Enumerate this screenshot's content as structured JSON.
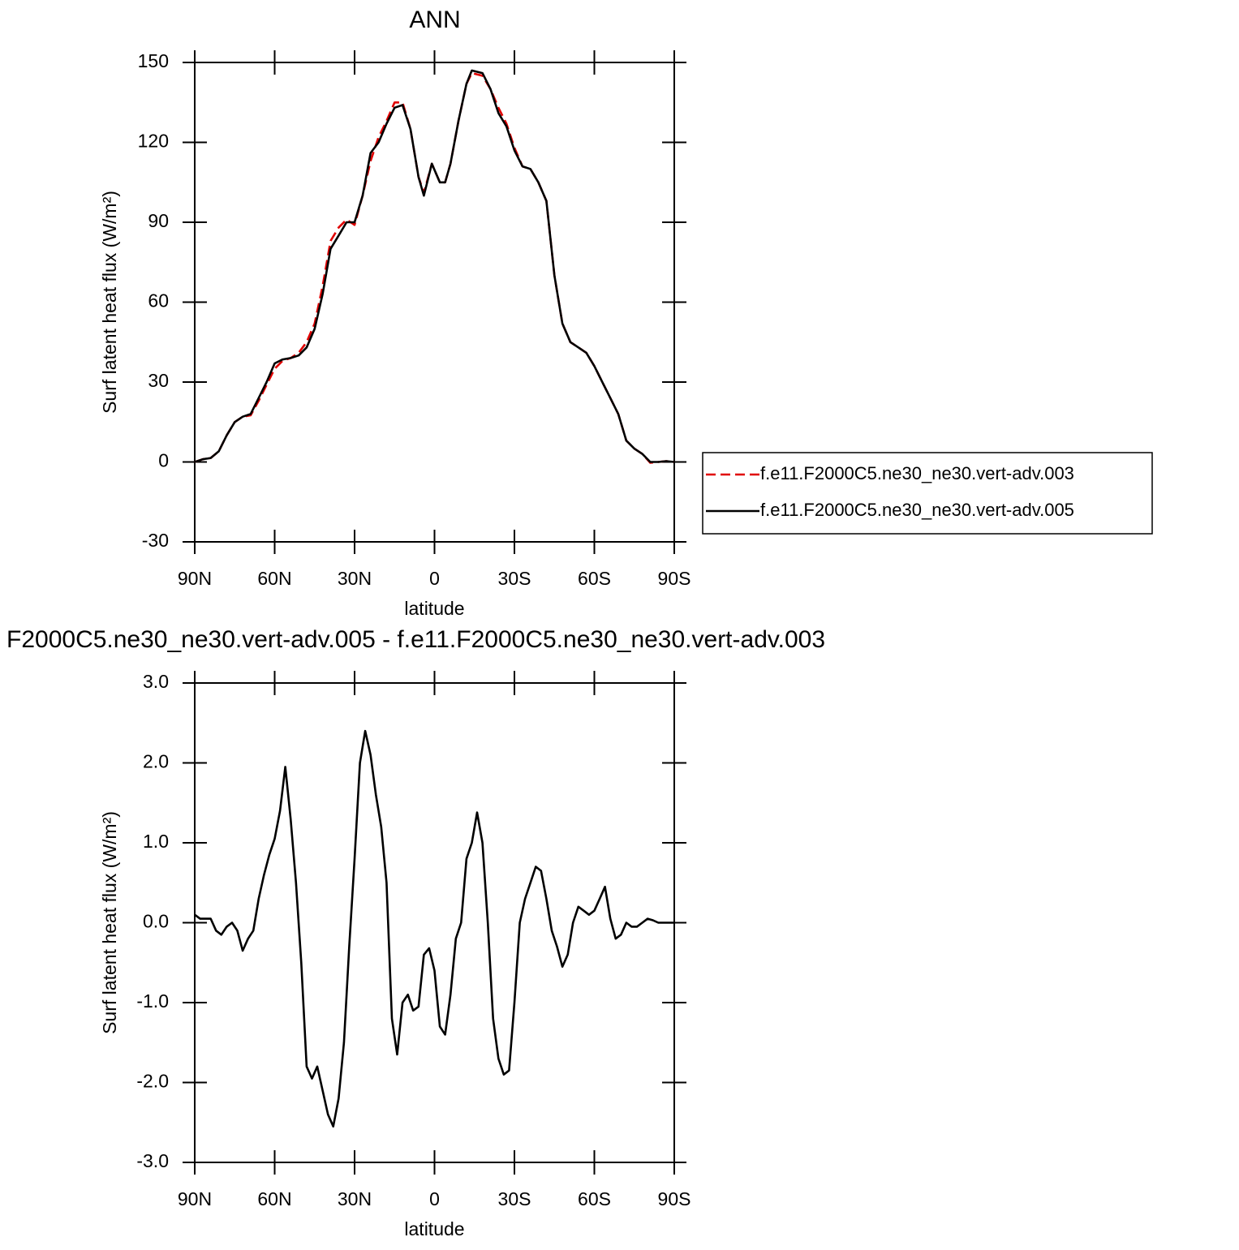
{
  "chart_data": [
    {
      "type": "line",
      "title": "ANN",
      "xlabel": "latitude",
      "ylabel": "Surf latent heat flux (W/m²)",
      "xlim": [
        90,
        -90
      ],
      "xticks": [
        {
          "value": 90,
          "label": "90N"
        },
        {
          "value": 60,
          "label": "60N"
        },
        {
          "value": 30,
          "label": "30N"
        },
        0,
        {
          "value": -30,
          "label": "30S"
        },
        {
          "value": -60,
          "label": "60S"
        },
        {
          "value": -90,
          "label": "90S"
        }
      ],
      "ylim": [
        -30,
        150
      ],
      "yticks": [
        -30,
        0,
        30,
        60,
        90,
        120,
        150
      ],
      "legend": "outside right",
      "x": [
        90,
        87,
        84,
        81,
        78,
        75,
        72,
        69,
        66,
        63,
        60,
        57,
        54,
        51,
        48,
        45,
        42,
        39,
        36,
        33,
        30,
        27,
        24,
        21,
        18,
        15,
        12,
        9,
        6,
        4,
        1,
        -2,
        -4,
        -6,
        -9,
        -12,
        -14,
        -18,
        -21,
        -24,
        -27,
        -30,
        -33,
        -36,
        -39,
        -42,
        -45,
        -48,
        -51,
        -54,
        -57,
        -60,
        -63,
        -66,
        -69,
        -72,
        -75,
        -78,
        -81,
        -84,
        -87,
        -90
      ],
      "series": [
        {
          "name": "f.e11.F2000C5.ne30_ne30.vert-adv.003",
          "color": "#e00000",
          "line_style": "dashed",
          "values": [
            0,
            1,
            1.5,
            4,
            10,
            15,
            17,
            17.5,
            23,
            29,
            35,
            38,
            39,
            41,
            45,
            52,
            66,
            83,
            88,
            91,
            89,
            100,
            113,
            122,
            128,
            135,
            135,
            125,
            107,
            101,
            112,
            105,
            105,
            112,
            128,
            142,
            146,
            145,
            140,
            133,
            127,
            118,
            111,
            110,
            105,
            98,
            70,
            52,
            45,
            43,
            41,
            36,
            30,
            24,
            18,
            8,
            5,
            3,
            -0.3,
            0,
            0.3,
            0
          ]
        },
        {
          "name": "f.e11.F2000C5.ne30_ne30.vert-adv.005",
          "color": "#000000",
          "line_style": "solid",
          "values": [
            0,
            1,
            1.5,
            4,
            10,
            15,
            17,
            18,
            24,
            30,
            37,
            38.5,
            39,
            40,
            43,
            50,
            63,
            80,
            85,
            90,
            90,
            100,
            116,
            120,
            127,
            133,
            134,
            125,
            107,
            100,
            112,
            105,
            105,
            112,
            128,
            142,
            147,
            146,
            140,
            131,
            126,
            117,
            111,
            110,
            105,
            98,
            70,
            52,
            45,
            43,
            41,
            36,
            30,
            24,
            18,
            8,
            5,
            3,
            0,
            0,
            0.3,
            0
          ]
        }
      ]
    },
    {
      "type": "line",
      "title": "F2000C5.ne30_ne30.vert-adv.005 - f.e11.F2000C5.ne30_ne30.vert-adv.003",
      "xlabel": "latitude",
      "ylabel": "Surf latent heat flux (W/m²)",
      "xlim": [
        90,
        -90
      ],
      "xticks": [
        {
          "value": 90,
          "label": "90N"
        },
        {
          "value": 60,
          "label": "60N"
        },
        {
          "value": 30,
          "label": "30N"
        },
        0,
        {
          "value": -30,
          "label": "30S"
        },
        {
          "value": -60,
          "label": "60S"
        },
        {
          "value": -90,
          "label": "90S"
        }
      ],
      "ylim": [
        -3,
        3
      ],
      "yticks": [
        {
          "value": -3,
          "label": "-3.0"
        },
        {
          "value": -2,
          "label": "-2.0"
        },
        {
          "value": -1,
          "label": "-1.0"
        },
        {
          "value": 0,
          "label": "0.0"
        },
        {
          "value": 1,
          "label": "1.0"
        },
        {
          "value": 2,
          "label": "2.0"
        },
        {
          "value": 3,
          "label": "3.0"
        }
      ],
      "x": [
        90,
        88,
        86,
        84,
        82,
        80,
        78,
        76,
        74,
        72,
        70,
        68,
        66,
        64,
        62,
        60,
        58,
        56,
        54,
        52,
        50,
        48,
        46,
        44,
        42,
        40,
        38,
        36,
        34,
        32,
        30,
        28,
        26,
        24,
        22,
        20,
        18,
        16,
        14,
        12,
        10,
        8,
        6,
        4,
        2,
        0,
        -2,
        -4,
        -6,
        -8,
        -10,
        -12,
        -14,
        -16,
        -18,
        -20,
        -22,
        -24,
        -26,
        -28,
        -30,
        -32,
        -34,
        -36,
        -38,
        -40,
        -42,
        -44,
        -46,
        -48,
        -50,
        -52,
        -54,
        -56,
        -58,
        -60,
        -62,
        -64,
        -66,
        -68,
        -70,
        -72,
        -74,
        -76,
        -78,
        -80,
        -82,
        -84,
        -86,
        -88,
        -90
      ],
      "series": [
        {
          "color": "#000000",
          "line_style": "solid",
          "values": [
            0.1,
            0.05,
            0.05,
            0.05,
            -0.1,
            -0.15,
            -0.05,
            0,
            -0.1,
            -0.35,
            -0.2,
            -0.1,
            0.3,
            0.6,
            0.85,
            1.05,
            1.4,
            1.95,
            1.3,
            0.5,
            -0.5,
            -1.8,
            -1.95,
            -1.8,
            -2.1,
            -2.4,
            -2.55,
            -2.2,
            -1.5,
            -0.3,
            0.8,
            2.0,
            2.4,
            2.1,
            1.6,
            1.2,
            0.5,
            -1.2,
            -1.65,
            -1.0,
            -0.9,
            -1.1,
            -1.05,
            -0.4,
            -0.32,
            -0.6,
            -1.3,
            -1.4,
            -0.9,
            -0.2,
            0,
            0.8,
            1.0,
            1.38,
            1.0,
            0,
            -1.2,
            -1.7,
            -1.9,
            -1.85,
            -1.0,
            0,
            0.3,
            0.5,
            0.7,
            0.65,
            0.3,
            -0.1,
            -0.3,
            -0.55,
            -0.4,
            0,
            0.2,
            0.15,
            0.1,
            0.15,
            0.3,
            0.45,
            0.05,
            -0.2,
            -0.15,
            0,
            -0.05,
            -0.05,
            0,
            0.05,
            0.03,
            0,
            0,
            0,
            0
          ]
        }
      ]
    }
  ]
}
